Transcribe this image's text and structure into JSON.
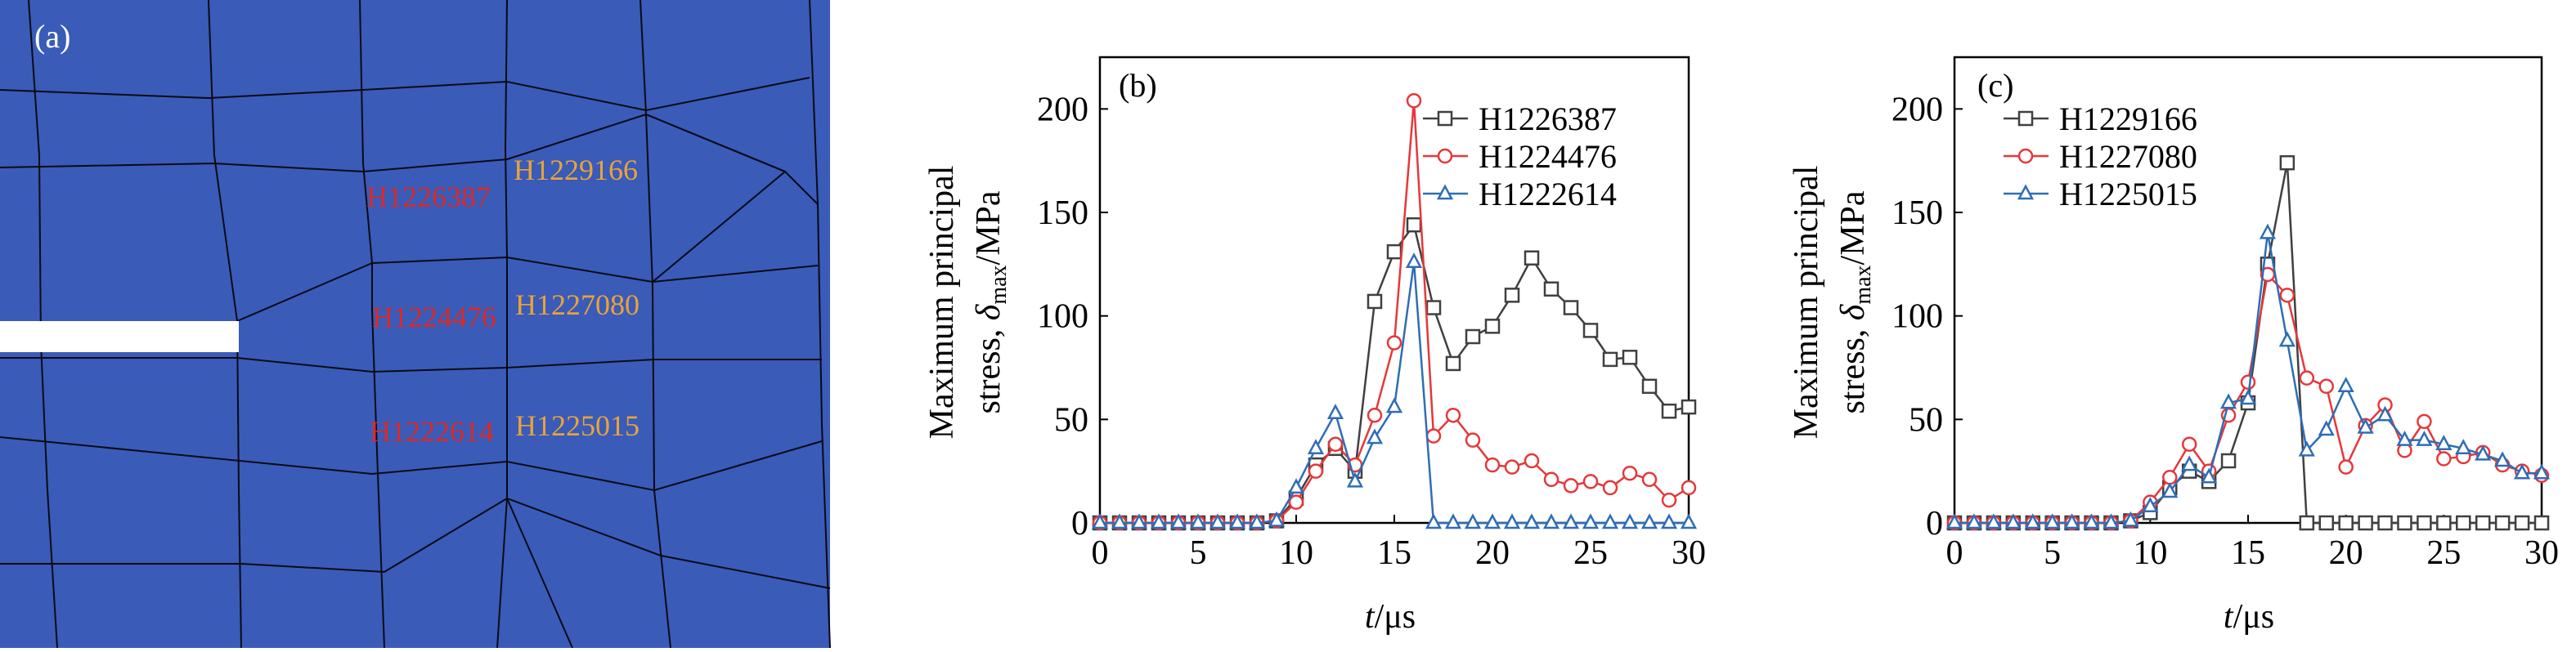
{
  "panel_a": {
    "label": "(a)",
    "background": "#3a5bb8",
    "mesh_color": "#0a0a14",
    "label_colors": {
      "red": "#d62b2b",
      "orange": "#e8a33a"
    },
    "node_labels": [
      {
        "text": "H1226387",
        "color": "red"
      },
      {
        "text": "H1229166",
        "color": "orange"
      },
      {
        "text": "H1224476",
        "color": "red"
      },
      {
        "text": "H1227080",
        "color": "orange"
      },
      {
        "text": "H1222614",
        "color": "red"
      },
      {
        "text": "H1225015",
        "color": "orange"
      }
    ]
  },
  "chart_data": [
    {
      "type": "line",
      "panel_label": "(b)",
      "xlabel_var": "t",
      "xlabel_unit": "/μs",
      "ylabel_line1": "Maximum principal",
      "ylabel_line2_prefix": "stress, ",
      "ylabel_var": "δ",
      "ylabel_sub": "max",
      "ylabel_unit": "/MPa",
      "xlim": [
        0,
        30
      ],
      "ylim": [
        0,
        225
      ],
      "xticks": [
        "0",
        "5",
        "10",
        "15",
        "20",
        "25",
        "30"
      ],
      "yticks": [
        "0",
        "50",
        "100",
        "150",
        "200"
      ],
      "x": [
        0,
        1,
        2,
        3,
        4,
        5,
        6,
        7,
        8,
        9,
        10,
        11,
        12,
        13,
        14,
        15,
        16,
        17,
        18,
        19,
        20,
        21,
        22,
        23,
        24,
        25,
        26,
        27,
        28,
        29,
        30
      ],
      "legend_position": "top-right",
      "series": [
        {
          "name": "H1226387",
          "color": "#404040",
          "marker": "square",
          "values": [
            0,
            0,
            0,
            0,
            0,
            0,
            0,
            0,
            0,
            1,
            12,
            28,
            36,
            25,
            107,
            131,
            144,
            104,
            77,
            90,
            95,
            110,
            128,
            113,
            104,
            93,
            79,
            80,
            66,
            54,
            56
          ]
        },
        {
          "name": "H1224476",
          "color": "#e5383b",
          "marker": "circle",
          "values": [
            0,
            0,
            0,
            0,
            0,
            0,
            0,
            0,
            0,
            1,
            10,
            25,
            38,
            28,
            52,
            87,
            204,
            42,
            52,
            40,
            28,
            27,
            30,
            21,
            18,
            20,
            17,
            24,
            21,
            11,
            17
          ]
        },
        {
          "name": "H1222614",
          "color": "#2f6db5",
          "marker": "triangle",
          "values": [
            0,
            0,
            0,
            0,
            0,
            0,
            0,
            0,
            0,
            1,
            17,
            36,
            53,
            20,
            41,
            56,
            126,
            0,
            0,
            0,
            0,
            0,
            0,
            0,
            0,
            0,
            0,
            0,
            0,
            0,
            0
          ]
        }
      ]
    },
    {
      "type": "line",
      "panel_label": "(c)",
      "xlabel_var": "t",
      "xlabel_unit": "/μs",
      "ylabel_line1": "Maximum principal",
      "ylabel_line2_prefix": "stress, ",
      "ylabel_var": "δ",
      "ylabel_sub": "max",
      "ylabel_unit": "/MPa",
      "xlim": [
        0,
        30
      ],
      "ylim": [
        0,
        225
      ],
      "xticks": [
        "0",
        "5",
        "10",
        "15",
        "20",
        "25",
        "30"
      ],
      "yticks": [
        "0",
        "50",
        "100",
        "150",
        "200"
      ],
      "x": [
        0,
        1,
        2,
        3,
        4,
        5,
        6,
        7,
        8,
        9,
        10,
        11,
        12,
        13,
        14,
        15,
        16,
        17,
        18,
        19,
        20,
        21,
        22,
        23,
        24,
        25,
        26,
        27,
        28,
        29,
        30
      ],
      "legend_position": "top-left",
      "series": [
        {
          "name": "H1229166",
          "color": "#404040",
          "marker": "square",
          "values": [
            0,
            0,
            0,
            0,
            0,
            0,
            0,
            0,
            0,
            1,
            5,
            17,
            25,
            20,
            30,
            58,
            125,
            174,
            0,
            0,
            0,
            0,
            0,
            0,
            0,
            0,
            0,
            0,
            0,
            0,
            0
          ]
        },
        {
          "name": "H1227080",
          "color": "#e5383b",
          "marker": "circle",
          "values": [
            0,
            0,
            0,
            0,
            0,
            0,
            0,
            0,
            0,
            1,
            10,
            22,
            38,
            25,
            52,
            68,
            120,
            110,
            70,
            66,
            27,
            47,
            57,
            35,
            49,
            31,
            32,
            34,
            28,
            25,
            23
          ]
        },
        {
          "name": "H1225015",
          "color": "#2f6db5",
          "marker": "triangle",
          "values": [
            0,
            0,
            0,
            0,
            0,
            0,
            0,
            0,
            0,
            1,
            8,
            15,
            28,
            22,
            58,
            60,
            140,
            88,
            35,
            45,
            66,
            46,
            52,
            40,
            40,
            38,
            36,
            33,
            30,
            24,
            24
          ]
        }
      ]
    }
  ]
}
